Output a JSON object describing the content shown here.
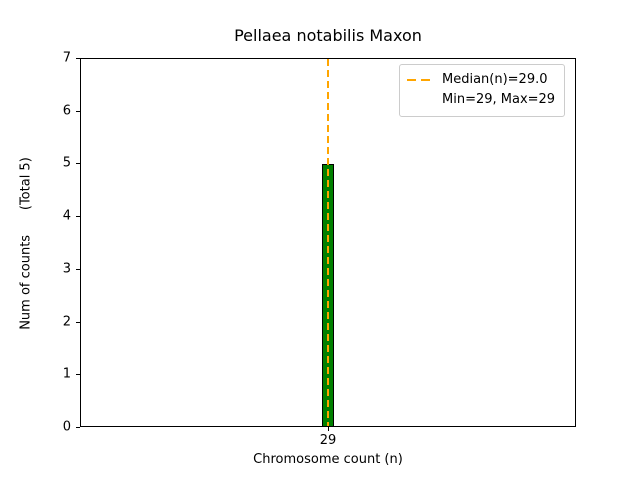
{
  "chart_data": {
    "type": "bar",
    "title": "Pellaea notabilis Maxon",
    "xlabel": "Chromosome count (n)",
    "ylabel": "Num of counts      (Total 5)",
    "categories": [
      "29"
    ],
    "values": [
      5
    ],
    "total_counts": 5,
    "ylim": [
      0,
      7
    ],
    "yticks": [
      0,
      1,
      2,
      3,
      4,
      5,
      6,
      7
    ],
    "xticks": [
      "29"
    ],
    "median": 29.0,
    "min": 29,
    "max": 29,
    "grid": false,
    "legend_position": "upper right",
    "bar_color": "#008000",
    "bar_edge_color": "#000000",
    "median_line_color": "#FFA500",
    "legend": {
      "line1": "Median(n)=29.0",
      "line2": "Min=29, Max=29"
    }
  }
}
